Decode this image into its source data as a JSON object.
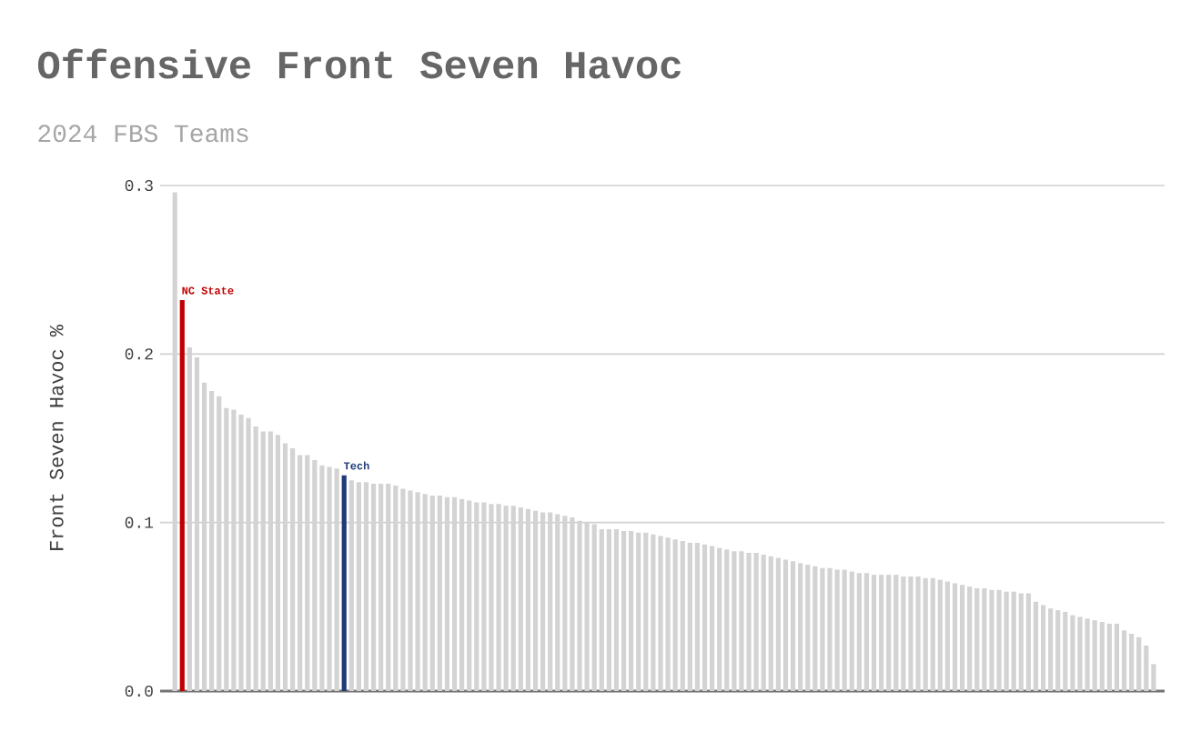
{
  "chart_data": {
    "type": "bar",
    "title": "Offensive Front Seven Havoc",
    "subtitle": "2024 FBS Teams",
    "ylabel": "Front Seven Havoc %",
    "categories": [
      null,
      null,
      null,
      null,
      null,
      null,
      null,
      null,
      null,
      null,
      null,
      null,
      null,
      null,
      null,
      null,
      null,
      null,
      null,
      null,
      null,
      null,
      null,
      null,
      null,
      null,
      null,
      null,
      null,
      null,
      null,
      null,
      null,
      null,
      null,
      null,
      null,
      null,
      null,
      null,
      null,
      null,
      null,
      null,
      null,
      null,
      null,
      null,
      null,
      null,
      null,
      null,
      null,
      null,
      null,
      null,
      null,
      null,
      null,
      null,
      null,
      null,
      null,
      null,
      null,
      null,
      null,
      null,
      null,
      null,
      null,
      null,
      null,
      null,
      null,
      null,
      null,
      null,
      null,
      null,
      null,
      null,
      null,
      null,
      null,
      null,
      null,
      null,
      null,
      null,
      null,
      null,
      null,
      null,
      null,
      null,
      null,
      null,
      null,
      null,
      null,
      null,
      null,
      null,
      null,
      null,
      null,
      null,
      null,
      null,
      null,
      null,
      null,
      null,
      null,
      null,
      null,
      null,
      null,
      null,
      null,
      null,
      null,
      null,
      null,
      null,
      null,
      null,
      null,
      null,
      null,
      null,
      null,
      null
    ],
    "values": [
      0.296,
      0.232,
      0.204,
      0.198,
      0.183,
      0.178,
      0.175,
      0.168,
      0.167,
      0.164,
      0.162,
      0.157,
      0.154,
      0.154,
      0.152,
      0.147,
      0.144,
      0.14,
      0.14,
      0.137,
      0.134,
      0.133,
      0.132,
      0.128,
      0.125,
      0.124,
      0.124,
      0.123,
      0.123,
      0.123,
      0.122,
      0.12,
      0.119,
      0.118,
      0.117,
      0.116,
      0.116,
      0.115,
      0.115,
      0.114,
      0.113,
      0.112,
      0.112,
      0.111,
      0.111,
      0.11,
      0.11,
      0.109,
      0.108,
      0.107,
      0.106,
      0.106,
      0.105,
      0.104,
      0.103,
      0.101,
      0.1,
      0.099,
      0.096,
      0.096,
      0.096,
      0.095,
      0.095,
      0.094,
      0.094,
      0.093,
      0.092,
      0.091,
      0.09,
      0.089,
      0.088,
      0.088,
      0.087,
      0.086,
      0.085,
      0.084,
      0.083,
      0.083,
      0.082,
      0.082,
      0.081,
      0.08,
      0.079,
      0.078,
      0.077,
      0.076,
      0.075,
      0.074,
      0.073,
      0.073,
      0.072,
      0.072,
      0.071,
      0.07,
      0.07,
      0.069,
      0.069,
      0.069,
      0.069,
      0.068,
      0.068,
      0.068,
      0.067,
      0.067,
      0.066,
      0.065,
      0.064,
      0.063,
      0.062,
      0.061,
      0.061,
      0.06,
      0.06,
      0.059,
      0.059,
      0.058,
      0.058,
      0.053,
      0.051,
      0.049,
      0.048,
      0.047,
      0.045,
      0.044,
      0.043,
      0.042,
      0.041,
      0.04,
      0.04,
      0.036,
      0.034,
      0.032,
      0.027,
      0.016
    ],
    "colors": [
      "#d3d3d3",
      "#c00000",
      "#d3d3d3",
      "#d3d3d3",
      "#d3d3d3",
      "#d3d3d3",
      "#d3d3d3",
      "#d3d3d3",
      "#d3d3d3",
      "#d3d3d3",
      "#d3d3d3",
      "#d3d3d3",
      "#d3d3d3",
      "#d3d3d3",
      "#d3d3d3",
      "#d3d3d3",
      "#d3d3d3",
      "#d3d3d3",
      "#d3d3d3",
      "#d3d3d3",
      "#d3d3d3",
      "#d3d3d3",
      "#d3d3d3",
      "#1f3a78",
      "#d3d3d3",
      "#d3d3d3",
      "#d3d3d3",
      "#d3d3d3",
      "#d3d3d3",
      "#d3d3d3",
      "#d3d3d3",
      "#d3d3d3",
      "#d3d3d3",
      "#d3d3d3",
      "#d3d3d3",
      "#d3d3d3",
      "#d3d3d3",
      "#d3d3d3",
      "#d3d3d3",
      "#d3d3d3",
      "#d3d3d3",
      "#d3d3d3",
      "#d3d3d3",
      "#d3d3d3",
      "#d3d3d3",
      "#d3d3d3",
      "#d3d3d3",
      "#d3d3d3",
      "#d3d3d3",
      "#d3d3d3",
      "#d3d3d3",
      "#d3d3d3",
      "#d3d3d3",
      "#d3d3d3",
      "#d3d3d3",
      "#d3d3d3",
      "#d3d3d3",
      "#d3d3d3",
      "#d3d3d3",
      "#d3d3d3",
      "#d3d3d3",
      "#d3d3d3",
      "#d3d3d3",
      "#d3d3d3",
      "#d3d3d3",
      "#d3d3d3",
      "#d3d3d3",
      "#d3d3d3",
      "#d3d3d3",
      "#d3d3d3",
      "#d3d3d3",
      "#d3d3d3",
      "#d3d3d3",
      "#d3d3d3",
      "#d3d3d3",
      "#d3d3d3",
      "#d3d3d3",
      "#d3d3d3",
      "#d3d3d3",
      "#d3d3d3",
      "#d3d3d3",
      "#d3d3d3",
      "#d3d3d3",
      "#d3d3d3",
      "#d3d3d3",
      "#d3d3d3",
      "#d3d3d3",
      "#d3d3d3",
      "#d3d3d3",
      "#d3d3d3",
      "#d3d3d3",
      "#d3d3d3",
      "#d3d3d3",
      "#d3d3d3",
      "#d3d3d3",
      "#d3d3d3",
      "#d3d3d3",
      "#d3d3d3",
      "#d3d3d3",
      "#d3d3d3",
      "#d3d3d3",
      "#d3d3d3",
      "#d3d3d3",
      "#d3d3d3",
      "#d3d3d3",
      "#d3d3d3",
      "#d3d3d3",
      "#d3d3d3",
      "#d3d3d3",
      "#d3d3d3",
      "#d3d3d3",
      "#d3d3d3",
      "#d3d3d3",
      "#d3d3d3",
      "#d3d3d3",
      "#d3d3d3",
      "#d3d3d3",
      "#d3d3d3",
      "#d3d3d3",
      "#d3d3d3",
      "#d3d3d3",
      "#d3d3d3",
      "#d3d3d3",
      "#d3d3d3",
      "#d3d3d3",
      "#d3d3d3",
      "#d3d3d3",
      "#d3d3d3",
      "#d3d3d3",
      "#d3d3d3",
      "#d3d3d3",
      "#d3d3d3",
      "#d3d3d3",
      "#d3d3d3"
    ],
    "ylim": [
      0,
      0.3
    ],
    "yticks": [
      {
        "value": 0,
        "label": "0.0"
      },
      {
        "value": 0.1,
        "label": "0.1"
      },
      {
        "value": 0.2,
        "label": "0.2"
      },
      {
        "value": 0.3,
        "label": "0.3"
      }
    ],
    "grid": "y",
    "tick_labels": "y",
    "annotations": [
      "NC State",
      "Tech"
    ]
  }
}
